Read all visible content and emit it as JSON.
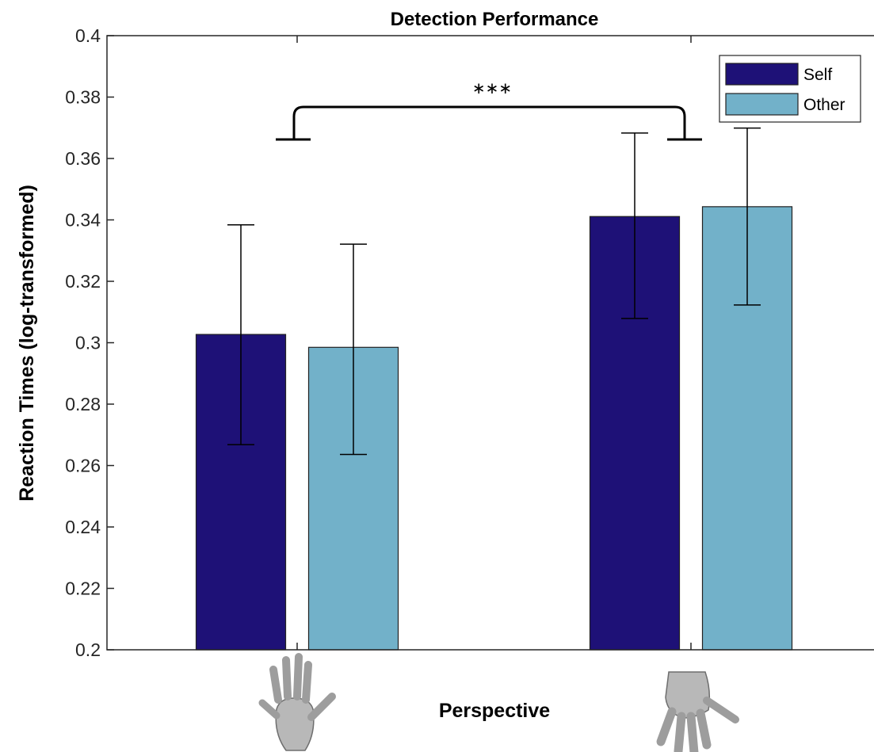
{
  "chart_data": {
    "type": "bar",
    "title": "Detection Performance",
    "xlabel": "Perspective",
    "ylabel": "Reaction Times (log-transformed)",
    "ylim": [
      0.2,
      0.4
    ],
    "yticks": [
      0.2,
      0.22,
      0.24,
      0.26,
      0.28,
      0.3,
      0.32,
      0.34,
      0.36,
      0.38,
      0.4
    ],
    "ytick_labels": [
      "0.2",
      "0.22",
      "0.24",
      "0.26",
      "0.28",
      "0.3",
      "0.32",
      "0.34",
      "0.36",
      "0.38",
      "0.4"
    ],
    "categories": [
      "hand-palm-icon",
      "hand-back-icon"
    ],
    "series": [
      {
        "name": "Self",
        "color": "#1e1177",
        "values": [
          0.3027,
          0.3411
        ],
        "error_low": [
          0.2668,
          0.3079
        ],
        "error_high": [
          0.3384,
          0.3683
        ]
      },
      {
        "name": "Other",
        "color": "#72b1c9",
        "values": [
          0.2985,
          0.3443
        ],
        "error_low": [
          0.2636,
          0.3123
        ],
        "error_high": [
          0.3321,
          0.3699
        ]
      }
    ],
    "significance": {
      "label": "∗∗∗",
      "between": [
        0,
        1
      ]
    },
    "legend_position": "top-right",
    "grid": false
  }
}
